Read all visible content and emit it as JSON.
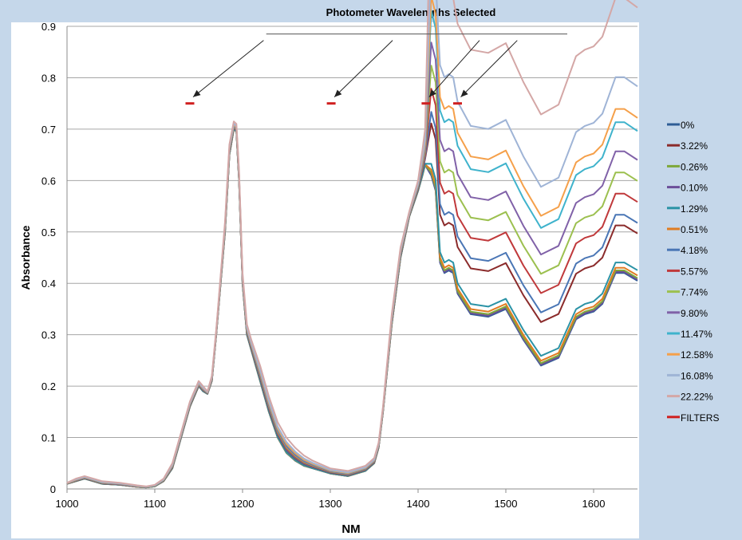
{
  "chart_data": {
    "type": "line",
    "title": "Photometer Wavelengths Selected",
    "xlabel": "NM",
    "ylabel": "Absorbance",
    "xlim": [
      1000,
      1650
    ],
    "ylim": [
      0,
      0.9
    ],
    "x_ticks": [
      1000,
      1100,
      1200,
      1300,
      1400,
      1500,
      1600
    ],
    "y_ticks": [
      0,
      0.1,
      0.2,
      0.3,
      0.4,
      0.5,
      0.6,
      0.7,
      0.8,
      0.9
    ],
    "x_tick_labels": [
      "1000",
      "1100",
      "1200",
      "1300",
      "1400",
      "1500",
      "1600"
    ],
    "y_tick_labels": [
      "0",
      "0.1",
      "0.2",
      "0.3",
      "0.4",
      "0.5",
      "0.6",
      "0.7",
      "0.8",
      "0.9"
    ],
    "grid": "horizontal",
    "legend_position": "right",
    "colors": {
      "0%": "#2f5d95",
      "3.22%": "#8b2b2b",
      "0.26%": "#7ea83a",
      "0.10%": "#6c4f9a",
      "1.29%": "#2b93a6",
      "0.51%": "#e07c22",
      "4.18%": "#4a76b5",
      "5.57%": "#c0393b",
      "7.74%": "#9cc04f",
      "9.80%": "#8061a8",
      "11.47%": "#3fb3cc",
      "12.58%": "#f5a04a",
      "16.08%": "#9fb4d6",
      "22.22%": "#d4a7a6",
      "FILTERS": "#d02020"
    },
    "shared_shape": {
      "x": [
        1000,
        1010,
        1020,
        1030,
        1040,
        1060,
        1080,
        1090,
        1100,
        1110,
        1120,
        1130,
        1140,
        1150,
        1155,
        1160,
        1165,
        1170,
        1180,
        1185,
        1190,
        1193,
        1196,
        1200,
        1205,
        1210,
        1220,
        1230,
        1240,
        1250,
        1260,
        1270,
        1280,
        1300,
        1320,
        1340,
        1350,
        1355,
        1360,
        1370,
        1380,
        1390,
        1400,
        1405,
        1408
      ],
      "y_min": [
        0.01,
        0.015,
        0.02,
        0.015,
        0.01,
        0.008,
        0.004,
        0.003,
        0.005,
        0.015,
        0.04,
        0.1,
        0.16,
        0.2,
        0.19,
        0.185,
        0.21,
        0.3,
        0.5,
        0.65,
        0.7,
        0.695,
        0.6,
        0.4,
        0.3,
        0.27,
        0.21,
        0.15,
        0.1,
        0.07,
        0.055,
        0.045,
        0.04,
        0.03,
        0.025,
        0.035,
        0.05,
        0.08,
        0.15,
        0.32,
        0.45,
        0.53,
        0.58,
        0.61,
        0.63
      ],
      "y_max": [
        0.012,
        0.02,
        0.025,
        0.02,
        0.015,
        0.012,
        0.007,
        0.005,
        0.008,
        0.02,
        0.05,
        0.11,
        0.17,
        0.21,
        0.2,
        0.19,
        0.22,
        0.31,
        0.52,
        0.67,
        0.715,
        0.71,
        0.62,
        0.42,
        0.32,
        0.29,
        0.24,
        0.18,
        0.13,
        0.1,
        0.08,
        0.065,
        0.055,
        0.04,
        0.035,
        0.045,
        0.06,
        0.09,
        0.16,
        0.34,
        0.47,
        0.54,
        0.6,
        0.66,
        0.7
      ]
    },
    "tail_x": [
      1408,
      1415,
      1420,
      1425,
      1430,
      1435,
      1440,
      1445,
      1460,
      1480,
      1500,
      1520,
      1540,
      1560,
      1580,
      1590,
      1600,
      1610,
      1625,
      1635,
      1650
    ],
    "tail_shape": [
      0,
      -0.02,
      -0.05,
      -0.19,
      -0.21,
      -0.205,
      -0.21,
      -0.25,
      -0.29,
      -0.295,
      -0.28,
      -0.34,
      -0.39,
      -0.375,
      -0.3,
      -0.29,
      -0.285,
      -0.27,
      -0.21,
      -0.21,
      -0.225
    ],
    "series": [
      {
        "name": "0%",
        "offset": 0.0
      },
      {
        "name": "3.22%",
        "offset": 0.09
      },
      {
        "name": "0.26%",
        "offset": 0.005
      },
      {
        "name": "0.10%",
        "offset": 0.002
      },
      {
        "name": "1.29%",
        "offset": 0.02
      },
      {
        "name": "0.51%",
        "offset": 0.01
      },
      {
        "name": "4.18%",
        "offset": 0.11
      },
      {
        "name": "5.57%",
        "offset": 0.15
      },
      {
        "name": "7.74%",
        "offset": 0.19
      },
      {
        "name": "9.80%",
        "offset": 0.23
      },
      {
        "name": "11.47%",
        "offset": 0.285
      },
      {
        "name": "12.58%",
        "offset": 0.31
      },
      {
        "name": "16.08%",
        "offset": 0.37
      },
      {
        "name": "22.22%",
        "offset": 0.52
      },
      {
        "name": "FILTERS"
      }
    ],
    "filters": [
      {
        "x": [
          1135,
          1145
        ],
        "y": 0.75
      },
      {
        "x": [
          1296,
          1306
        ],
        "y": 0.75
      },
      {
        "x": [
          1404,
          1414
        ],
        "y": 0.75
      },
      {
        "x": [
          1440,
          1450
        ],
        "y": 0.75
      }
    ],
    "annotation": {
      "label_line_x": [
        1227,
        1570
      ],
      "label_line_y": 0.885
    }
  }
}
